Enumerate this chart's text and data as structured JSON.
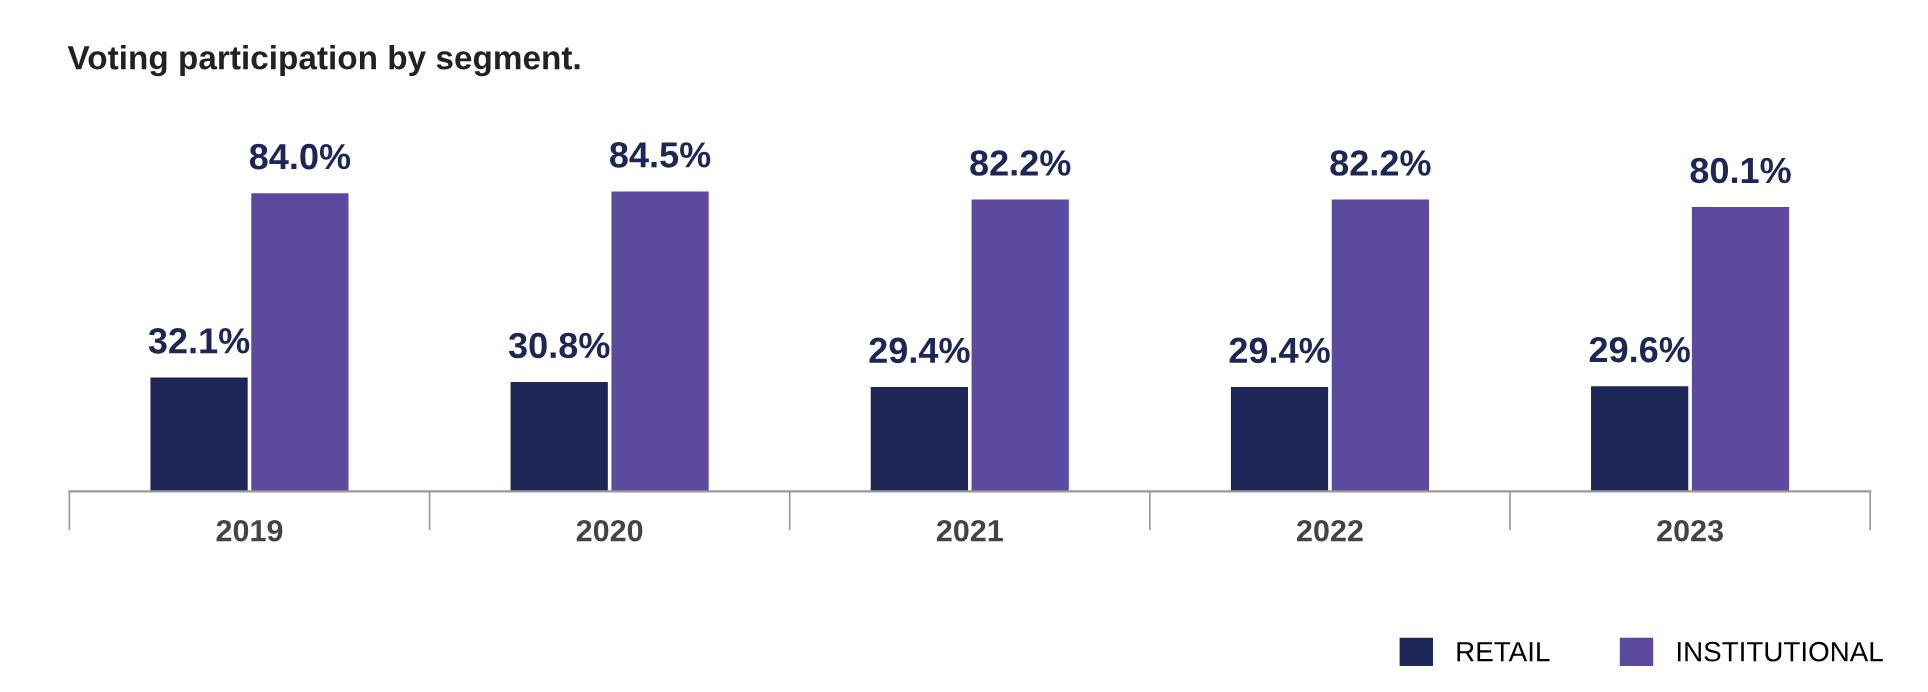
{
  "chart_data": {
    "type": "bar",
    "title": "Voting participation by segment.",
    "categories": [
      "2019",
      "2020",
      "2021",
      "2022",
      "2023"
    ],
    "series": [
      {
        "name": "RETAIL",
        "color": "#1c2657",
        "values": [
          32.1,
          30.8,
          29.4,
          29.4,
          29.6
        ],
        "value_labels": [
          "32.1%",
          "30.8%",
          "29.4%",
          "29.4%",
          "29.6%"
        ]
      },
      {
        "name": "INSTITUTIONAL",
        "color": "#5b4a9e",
        "values": [
          84.0,
          84.5,
          82.2,
          82.2,
          80.1
        ],
        "value_labels": [
          "84.0%",
          "84.5%",
          "82.2%",
          "82.2%",
          "80.1%"
        ]
      }
    ],
    "legend": "bottom right",
    "grid": false
  }
}
